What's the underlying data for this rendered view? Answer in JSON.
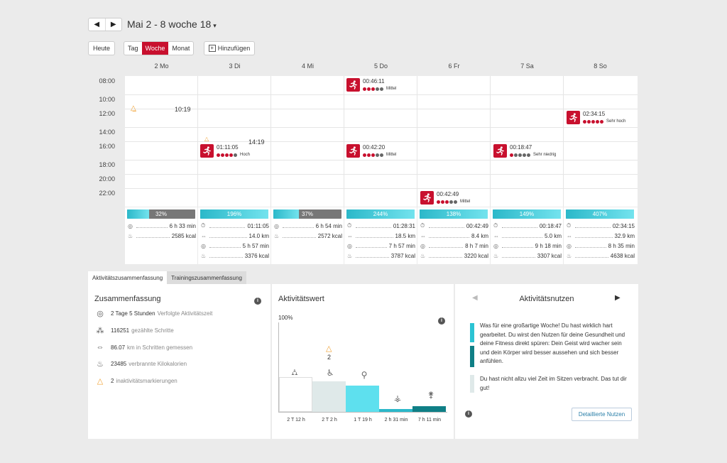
{
  "nav": {
    "prev": "◀",
    "next": "▶",
    "range": "Mai 2 - 8 woche 18",
    "caret": "▾"
  },
  "toolbar": {
    "today": "Heute",
    "day": "Tag",
    "week": "Woche",
    "month": "Monat",
    "add": "Hinzufügen"
  },
  "days": [
    "2 Mo",
    "3 Di",
    "4 Mi",
    "5 Do",
    "6 Fr",
    "7 Sa",
    "8 So"
  ],
  "times": [
    "08:00",
    "10:00",
    "12:00",
    "14:00",
    "16:00",
    "18:00",
    "20:00",
    "22:00"
  ],
  "activities": {
    "a1": {
      "dur": "00:46:11",
      "intensity": "Mittel"
    },
    "a2": {
      "dur": "02:34:15",
      "intensity": "Sehr hoch"
    },
    "a3": {
      "dur": "01:11:05",
      "intensity": "Hoch"
    },
    "a4": {
      "dur": "00:42:20",
      "intensity": "Mittel"
    },
    "a5": {
      "dur": "00:18:47",
      "intensity": "Sehr niedrig"
    },
    "a6": {
      "dur": "00:42:49",
      "intensity": "Mittel"
    },
    "mo_time": "10:19",
    "di_time": "14:19"
  },
  "stats": [
    {
      "pct_label": "32%",
      "pct": 32,
      "r1": "6 h 33 min",
      "r2": "2585 kcal"
    },
    {
      "pct_label": "196%",
      "pct": 100,
      "r1": "01:11:05",
      "r2": "14.0 km",
      "r3": "5 h 57 min",
      "r4": "3376 kcal"
    },
    {
      "pct_label": "37%",
      "pct": 37,
      "r1": "6 h 54 min",
      "r2": "2572 kcal"
    },
    {
      "pct_label": "244%",
      "pct": 100,
      "r1": "01:28:31",
      "r2": "18.5 km",
      "r3": "7 h 57 min",
      "r4": "3787 kcal"
    },
    {
      "pct_label": "138%",
      "pct": 100,
      "r1": "00:42:49",
      "r2": "8.4 km",
      "r3": "8 h 7 min",
      "r4": "3220 kcal"
    },
    {
      "pct_label": "149%",
      "pct": 100,
      "r1": "00:18:47",
      "r2": "5.0 km",
      "r3": "9 h 18 min",
      "r4": "3307 kcal"
    },
    {
      "pct_label": "407%",
      "pct": 100,
      "r1": "02:34:15",
      "r2": "32.9 km",
      "r3": "8 h 35 min",
      "r4": "4638 kcal"
    }
  ],
  "tabs": {
    "t1": "Aktivitätszusammenfassung",
    "t2": "Trainingszusammenfassung"
  },
  "summary": {
    "title": "Zusammenfassung",
    "rows": [
      {
        "v": "2 Tage 5 Stunden",
        "l": "Verfolgte Aktivitätszeit"
      },
      {
        "v": "116251",
        "l": "gezählte Schritte"
      },
      {
        "v": "86.07",
        "l": "km in Schritten gemessen"
      },
      {
        "v": "23485",
        "l": "verbrannte Kilokalorien"
      },
      {
        "v": "2",
        "l": "inaktivitätsmarkierungen"
      }
    ]
  },
  "activity_value": {
    "title": "Aktivitätswert",
    "ylabel": "100%",
    "warn_count": "2",
    "bars": [
      {
        "label": "2 T 12 h",
        "level": 0.39
      },
      {
        "label": "2 T 2 h",
        "level": 0.34
      },
      {
        "label": "1 T 19 h",
        "level": 0.29
      },
      {
        "label": "2 h 31 min",
        "level": 0.03
      },
      {
        "label": "7 h 11 min",
        "level": 0.06
      }
    ]
  },
  "benefit": {
    "title": "Aktivitätsnutzen",
    "p1": "Was für eine großartige Woche! Du hast wirklich hart gearbeitet. Du wirst den Nutzen für deine Gesundheit und deine Fitness direkt spüren: Dein Geist wird wacher sein und dein Körper wird besser aussehen und sich besser anfühlen.",
    "p2": "Du hast nicht allzu viel Zeit im Sitzen verbracht. Das tut dir gut!",
    "button": "Detaillierte Nutzen"
  },
  "colors": {
    "accent": "#c8102e",
    "teal": "#2bb8c9",
    "darkteal": "#0f7f86"
  }
}
